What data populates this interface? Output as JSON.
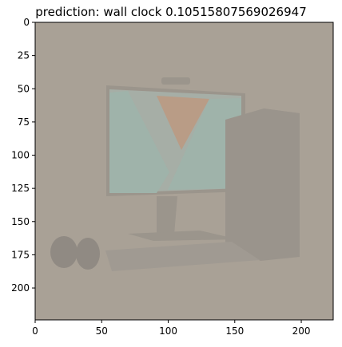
{
  "chart_data": {
    "type": "image",
    "title": "prediction: wall clock 0.10515807569026947",
    "image_size": [
      224,
      224
    ],
    "x": {
      "lim": [
        0,
        224
      ],
      "ticks": [
        0,
        50,
        100,
        150,
        200
      ],
      "tick_labels": [
        "0",
        "50",
        "100",
        "150",
        "200"
      ]
    },
    "y": {
      "lim": [
        0,
        224
      ],
      "inverted": true,
      "ticks": [
        0,
        25,
        50,
        75,
        100,
        125,
        150,
        175,
        200
      ],
      "tick_labels": [
        "0",
        "25",
        "50",
        "75",
        "100",
        "125",
        "150",
        "175",
        "200"
      ]
    },
    "grid": false,
    "legend": "none",
    "image_content": "washed-out photo of a desktop computer: monitor, tower, keyboard, speakers",
    "colors": {
      "background": "#a9a196",
      "monitor_frame": "#9b958c",
      "screen": "#a6aea6",
      "triangle_orange": "#b99c86",
      "triangle_teal": "#9fb3aa",
      "tower": "#9a948c",
      "keyboard": "#a09a92",
      "speaker": "#908a83"
    }
  }
}
